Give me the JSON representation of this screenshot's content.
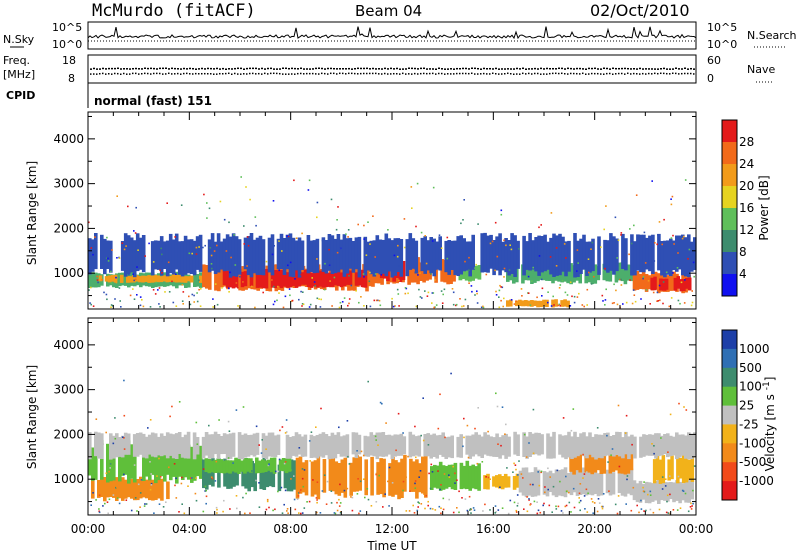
{
  "header": {
    "station": "McMurdo (fitACF)",
    "beam": "Beam 04",
    "date": "02/Oct/2010"
  },
  "noise_panel": {
    "left_label": "N.Sky",
    "right_label": "N.Search",
    "left_ticks": [
      "10^5",
      "10^0"
    ],
    "right_ticks": [
      "10^5",
      "10^0"
    ]
  },
  "freq_panel": {
    "left_label_1": "Freq.",
    "left_label_2": "[MHz]",
    "right_label": "Nave",
    "left_ticks": [
      "18",
      "8"
    ],
    "right_ticks": [
      "60",
      "0"
    ]
  },
  "cpid": {
    "label": "CPID",
    "value": "normal (fast) 151"
  },
  "x_axis": {
    "label": "Time UT",
    "ticks": [
      "00:00",
      "04:00",
      "08:00",
      "12:00",
      "16:00",
      "20:00",
      "00:00"
    ]
  },
  "chart_data": [
    {
      "type": "heatmap",
      "name": "power-panel",
      "ylabel": "Slant Range [km]",
      "yticks": [
        "1000",
        "2000",
        "3000",
        "4000"
      ],
      "ylim": [
        200,
        4600
      ],
      "xlim_hours": [
        0,
        24
      ],
      "colorbar": {
        "label": "Power [dB]",
        "ticks": [
          "4",
          "8",
          "12",
          "16",
          "20",
          "24",
          "28"
        ],
        "colors": [
          "#1010f0",
          "#2f4fb4",
          "#3d8c6e",
          "#5fbf5a",
          "#e6d320",
          "#f29b1a",
          "#f26a1a",
          "#e41a1a"
        ]
      },
      "bands": [
        {
          "x0": 0.0,
          "x1": 4.5,
          "y0": 700,
          "y1": 1000,
          "color": "#4cae6c"
        },
        {
          "x0": 0.3,
          "x1": 4.5,
          "y0": 800,
          "y1": 950,
          "color": "#f29b1a"
        },
        {
          "x0": 4.5,
          "x1": 11.3,
          "y0": 650,
          "y1": 1150,
          "color": "#f26a1a"
        },
        {
          "x0": 5.2,
          "x1": 11.0,
          "y0": 700,
          "y1": 1050,
          "color": "#e41a1a"
        },
        {
          "x0": 11.3,
          "x1": 14.5,
          "y0": 800,
          "y1": 1300,
          "color": "#f26a1a"
        },
        {
          "x0": 11.4,
          "x1": 12.5,
          "y0": 850,
          "y1": 1250,
          "color": "#e41a1a"
        },
        {
          "x0": 14.5,
          "x1": 15.5,
          "y0": 850,
          "y1": 1200,
          "color": "#5fbf5a"
        },
        {
          "x0": 16.5,
          "x1": 21.5,
          "y0": 800,
          "y1": 1200,
          "color": "#4cae6c"
        },
        {
          "x0": 21.5,
          "x1": 23.9,
          "y0": 600,
          "y1": 1000,
          "color": "#f26a1a"
        },
        {
          "x0": 22.2,
          "x1": 23.8,
          "y0": 620,
          "y1": 900,
          "color": "#e41a1a"
        },
        {
          "x0": 0.0,
          "x1": 24.0,
          "y0": 1000,
          "y1": 1800,
          "color": "#2f4fb4"
        },
        {
          "x0": 16.5,
          "x1": 19.0,
          "y0": 250,
          "y1": 400,
          "color": "#f29b1a"
        }
      ]
    },
    {
      "type": "heatmap",
      "name": "velocity-panel",
      "ylabel": "Slant Range [km]",
      "yticks": [
        "1000",
        "2000",
        "3000",
        "4000"
      ],
      "ylim": [
        200,
        4600
      ],
      "xlim_hours": [
        0,
        24
      ],
      "colorbar": {
        "label": "Velocity [m s^-1]",
        "ticks": [
          "1000",
          "500",
          "100",
          "25",
          "-25",
          "-100",
          "-500",
          "-1000"
        ],
        "colors": [
          "#1d3fa8",
          "#2f6fb4",
          "#3d8c6e",
          "#5fbf3a",
          "#c0c0c0",
          "#f2b21a",
          "#f28a1a",
          "#f24a1a",
          "#e41a1a"
        ]
      },
      "bands": [
        {
          "x0": 0.0,
          "x1": 3.2,
          "y0": 550,
          "y1": 1000,
          "color": "#f28a1a"
        },
        {
          "x0": 0.0,
          "x1": 4.5,
          "y0": 1000,
          "y1": 1800,
          "color": "#5fbf3a"
        },
        {
          "x0": 4.5,
          "x1": 8.2,
          "y0": 800,
          "y1": 1400,
          "color": "#3d8c6e"
        },
        {
          "x0": 4.6,
          "x1": 8.0,
          "y0": 1150,
          "y1": 1450,
          "color": "#5fbf3a"
        },
        {
          "x0": 8.2,
          "x1": 13.5,
          "y0": 650,
          "y1": 1450,
          "color": "#f28a1a"
        },
        {
          "x0": 13.5,
          "x1": 15.6,
          "y0": 800,
          "y1": 1350,
          "color": "#5fbf3a"
        },
        {
          "x0": 15.6,
          "x1": 17.0,
          "y0": 800,
          "y1": 1100,
          "color": "#f2b21a"
        },
        {
          "x0": 17.0,
          "x1": 21.5,
          "y0": 650,
          "y1": 1200,
          "color": "#c0c0c0"
        },
        {
          "x0": 19.0,
          "x1": 21.5,
          "y0": 1150,
          "y1": 1600,
          "color": "#f28a1a"
        },
        {
          "x0": 21.5,
          "x1": 23.9,
          "y0": 500,
          "y1": 950,
          "color": "#c0c0c0"
        },
        {
          "x0": 22.3,
          "x1": 23.9,
          "y0": 950,
          "y1": 1500,
          "color": "#f2b21a"
        },
        {
          "x0": 0.0,
          "x1": 24.0,
          "y0": 1500,
          "y1": 2000,
          "color": "#c0c0c0"
        }
      ]
    }
  ]
}
